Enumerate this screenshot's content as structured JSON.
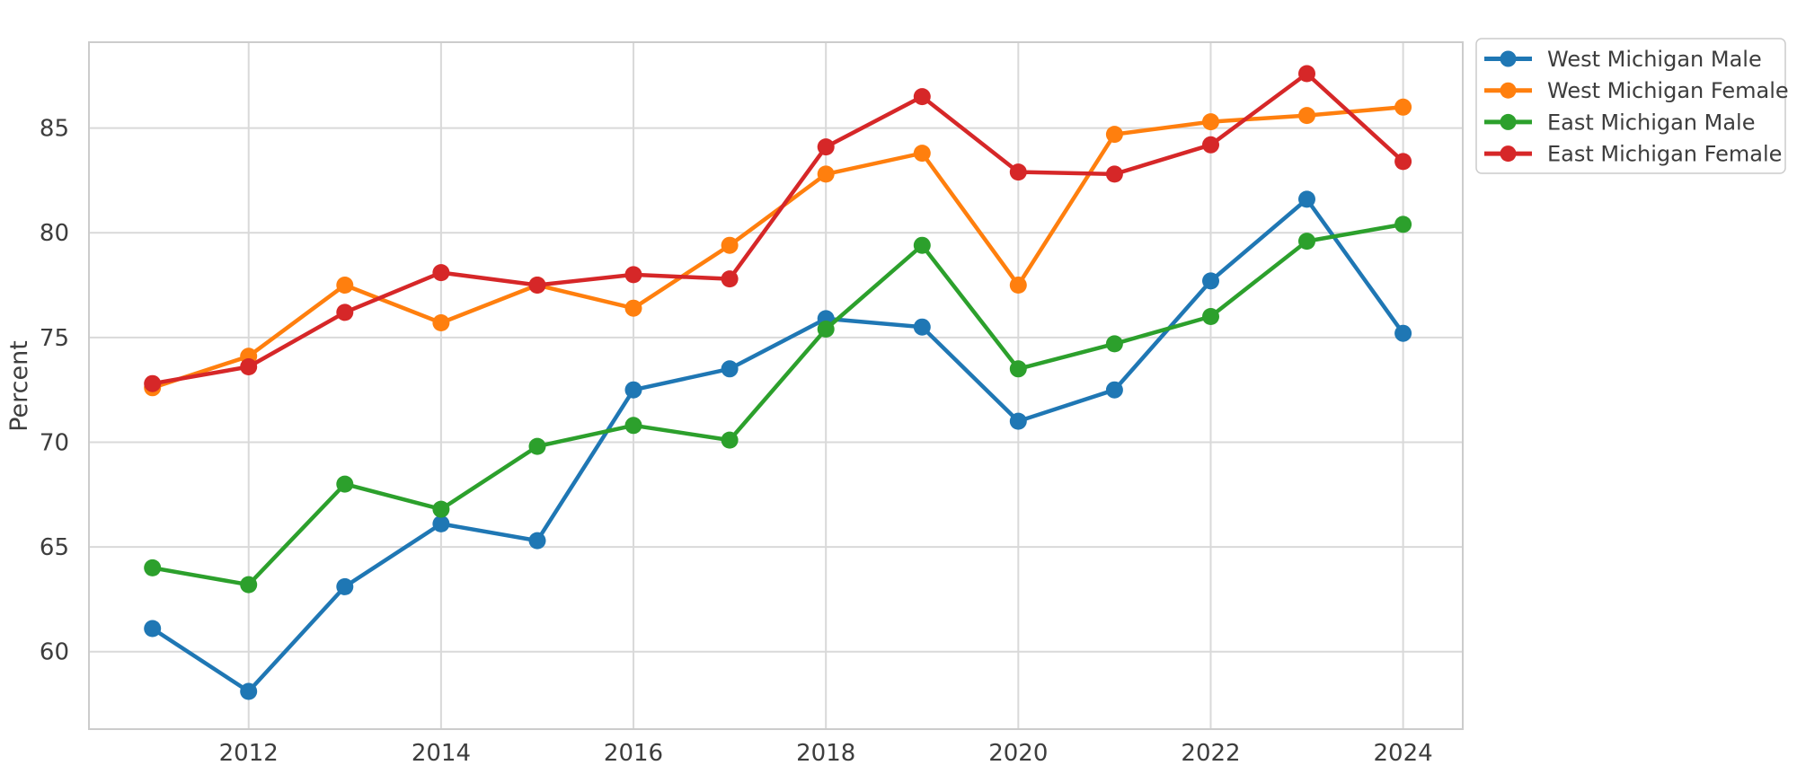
{
  "figure": {
    "background": "#ffffff",
    "grid_color": "#d9d9d9",
    "spine_color": "#cccccc",
    "tick_label_color": "#3d3d3d",
    "axis_label_color": "#3d3d3d",
    "legend_border_color": "#cccccc",
    "legend_background": "#ffffff"
  },
  "chart_data": {
    "type": "line",
    "title": "",
    "xlabel": "",
    "ylabel": "Percent",
    "grid": true,
    "legend_position": "outside upper right",
    "marker": "circle",
    "x": [
      2011,
      2012,
      2013,
      2014,
      2015,
      2016,
      2017,
      2018,
      2019,
      2020,
      2021,
      2022,
      2023,
      2024
    ],
    "series": [
      {
        "name": "West Michigan Male",
        "color": "#1f77b4",
        "values": [
          61.1,
          58.1,
          63.1,
          66.1,
          65.3,
          72.5,
          73.5,
          75.9,
          75.5,
          71.0,
          72.5,
          77.7,
          81.6,
          75.2
        ]
      },
      {
        "name": "West Michigan Female",
        "color": "#ff7f0e",
        "values": [
          72.6,
          74.1,
          77.5,
          75.7,
          77.5,
          76.4,
          79.4,
          82.8,
          83.8,
          77.5,
          84.7,
          85.3,
          85.6,
          86.0
        ]
      },
      {
        "name": "East Michigan Male",
        "color": "#2ca02c",
        "values": [
          64.0,
          63.2,
          68.0,
          66.8,
          69.8,
          70.8,
          70.1,
          75.4,
          79.4,
          73.5,
          74.7,
          76.0,
          79.6,
          80.4
        ]
      },
      {
        "name": "East Michigan Female",
        "color": "#d62728",
        "values": [
          72.8,
          73.6,
          76.2,
          78.1,
          77.5,
          78.0,
          77.8,
          84.1,
          86.5,
          82.9,
          82.8,
          84.2,
          87.6,
          83.4
        ]
      }
    ],
    "x_ticks": [
      2012,
      2014,
      2016,
      2018,
      2020,
      2022,
      2024
    ],
    "y_ticks": [
      60,
      65,
      70,
      75,
      80,
      85
    ],
    "xlim": [
      2010.34,
      2024.62
    ],
    "ylim": [
      56.3,
      89.1
    ]
  }
}
